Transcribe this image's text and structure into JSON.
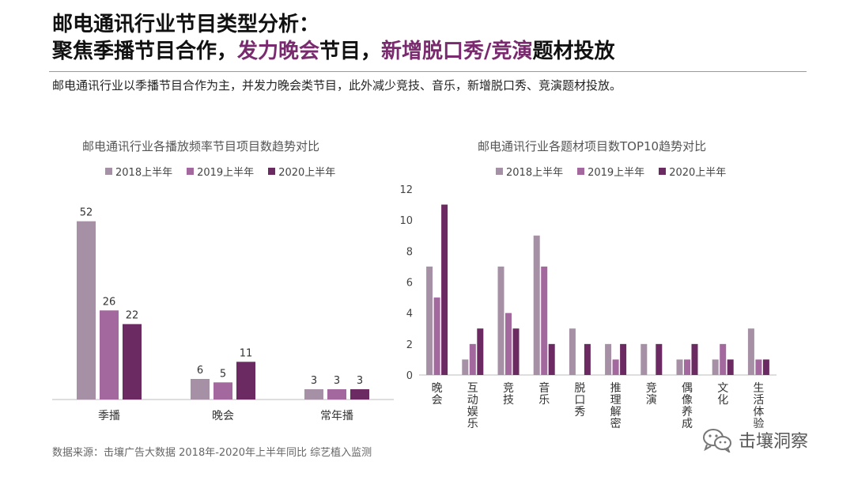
{
  "header": {
    "title_line1": "邮电通讯行业节目类型分析：",
    "title_line2_parts": [
      "聚焦季播节目合作，",
      "发力晚会",
      "节目，",
      "新增脱口秀/竞演",
      "题材投放"
    ],
    "subtitle": "邮电通讯行业以季播节目合作为主，并发力晚会类节目，此外减少竞技、音乐，新增脱口秀、竞演题材投放。"
  },
  "colors": {
    "accent": "#7a2a6e",
    "series_2018": "#a590a6",
    "series_2019": "#a3699e",
    "series_2020": "#6b2a61"
  },
  "chart_data": [
    {
      "type": "bar",
      "title": "邮电通讯行业各播放频率节目项目数趋势对比",
      "categories": [
        "季播",
        "晚会",
        "常年播"
      ],
      "series": [
        {
          "name": "2018上半年",
          "values": [
            52,
            6,
            3
          ]
        },
        {
          "name": "2019上半年",
          "values": [
            26,
            5,
            3
          ]
        },
        {
          "name": "2020上半年",
          "values": [
            22,
            11,
            3
          ]
        }
      ],
      "ylim": [
        0,
        60
      ],
      "data_labels": true,
      "y_axis_visible": false,
      "legend": "top"
    },
    {
      "type": "bar",
      "title": "邮电通讯行业各题材项目数TOP10趋势对比",
      "categories": [
        "晚会",
        "互动娱乐",
        "竞技",
        "音乐",
        "脱口秀",
        "推理解密",
        "竞演",
        "偶像养成",
        "文化",
        "生活体验"
      ],
      "series": [
        {
          "name": "2018上半年",
          "values": [
            7,
            1,
            7,
            9,
            3,
            2,
            2,
            1,
            1,
            3
          ]
        },
        {
          "name": "2019上半年",
          "values": [
            5,
            2,
            4,
            7,
            0,
            1,
            0,
            1,
            2,
            1
          ]
        },
        {
          "name": "2020上半年",
          "values": [
            11,
            3,
            3,
            2,
            2,
            2,
            2,
            2,
            1,
            1
          ]
        }
      ],
      "yticks": [
        "0",
        "2",
        "4",
        "6",
        "8",
        "10",
        "12"
      ],
      "ylim": [
        0,
        12
      ],
      "legend": "top"
    }
  ],
  "footer": {
    "source": "数据来源：击壤广告大数据 2018年-2020年上半年同比 综艺植入监测",
    "brand": "击壤洞察"
  }
}
